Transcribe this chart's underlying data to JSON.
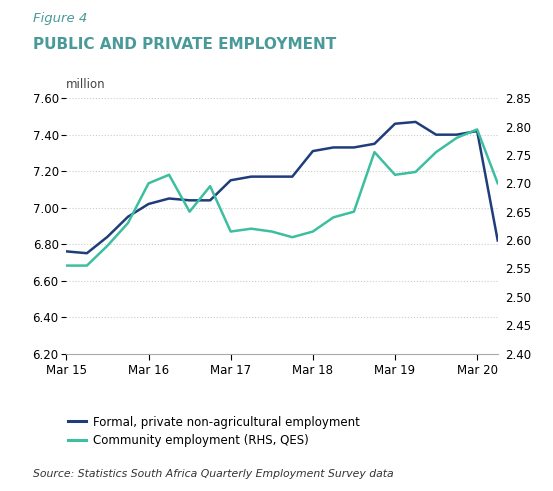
{
  "figure_label": "Figure 4",
  "title": "PUBLIC AND PRIVATE EMPLOYMENT",
  "ylabel_left": "million",
  "source_text": "Source: Statistics South Africa Quarterly Employment Survey data",
  "xlim": [
    0,
    21
  ],
  "ylim_left": [
    6.2,
    7.6
  ],
  "ylim_right": [
    2.4,
    2.85
  ],
  "xtick_positions": [
    0,
    4,
    8,
    12,
    16,
    20
  ],
  "xtick_labels": [
    "Mar 15",
    "Mar 16",
    "Mar 17",
    "Mar 18",
    "Mar 19",
    "Mar 20"
  ],
  "yticks_left": [
    6.2,
    6.4,
    6.6,
    6.8,
    7.0,
    7.2,
    7.4,
    7.6
  ],
  "yticks_right": [
    2.4,
    2.45,
    2.5,
    2.55,
    2.6,
    2.65,
    2.7,
    2.75,
    2.8,
    2.85
  ],
  "formal_color": "#1f3d7a",
  "community_color": "#3dbf9f",
  "formal_label": "Formal, private non-agricultural employment",
  "community_label": "Community employment (RHS, QES)",
  "formal_x": [
    0,
    1,
    2,
    3,
    4,
    5,
    6,
    7,
    8,
    9,
    10,
    11,
    12,
    13,
    14,
    15,
    16,
    17,
    18,
    19,
    20,
    21
  ],
  "formal_y": [
    6.76,
    6.75,
    6.84,
    6.95,
    7.02,
    7.05,
    7.04,
    7.04,
    7.15,
    7.17,
    7.17,
    7.17,
    7.31,
    7.33,
    7.33,
    7.35,
    7.46,
    7.47,
    7.4,
    7.4,
    7.42,
    6.82
  ],
  "community_x": [
    0,
    1,
    2,
    3,
    4,
    5,
    6,
    7,
    8,
    9,
    10,
    11,
    12,
    13,
    14,
    15,
    16,
    17,
    18,
    19,
    20,
    21
  ],
  "community_y": [
    2.555,
    2.555,
    2.59,
    2.63,
    2.7,
    2.715,
    2.65,
    2.695,
    2.615,
    2.62,
    2.615,
    2.605,
    2.615,
    2.64,
    2.65,
    2.755,
    2.715,
    2.72,
    2.755,
    2.78,
    2.795,
    2.7
  ],
  "background_color": "#ffffff",
  "grid_color": "#cccccc",
  "figure_label_color": "#4a9a9a",
  "title_color": "#4a9a9a",
  "linewidth": 1.8
}
